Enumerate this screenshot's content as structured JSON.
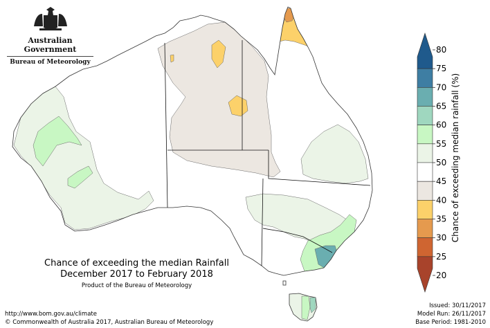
{
  "logo": {
    "emblem_name": "commonwealth-coat-of-arms",
    "line1": "Australian Government",
    "line2": "Bureau of Meteorology"
  },
  "title": {
    "line1": "Chance of exceeding the median Rainfall",
    "line2": "December 2017 to February 2018",
    "line3": "Product of the Bureau of Meteorology"
  },
  "footer_left": {
    "url": "http://www.bom.gov.au/climate",
    "copyright": "© Commonwealth of Australia 2017, Australian Bureau of Meteorology"
  },
  "footer_right": {
    "issued": "Issued: 30/11/2017",
    "model_run": "Model Run: 26/11/2017",
    "base_period": "Base Period: 1981-2010"
  },
  "legend": {
    "title": "Chance of exceeding median rainfall (%)",
    "classes": [
      {
        "from": 75,
        "to": 80,
        "color": "#1f5a8c"
      },
      {
        "from": 70,
        "to": 75,
        "color": "#3e7ea3"
      },
      {
        "from": 65,
        "to": 70,
        "color": "#6aaeb0"
      },
      {
        "from": 60,
        "to": 65,
        "color": "#9fd7bf"
      },
      {
        "from": 55,
        "to": 60,
        "color": "#c8f7c3"
      },
      {
        "from": 50,
        "to": 55,
        "color": "#ebf4e7"
      },
      {
        "from": 45,
        "to": 50,
        "color": "#ffffff"
      },
      {
        "from": 40,
        "to": 45,
        "color": "#ece7e1"
      },
      {
        "from": 35,
        "to": 40,
        "color": "#fcd16a"
      },
      {
        "from": 30,
        "to": 35,
        "color": "#e59a4e"
      },
      {
        "from": 25,
        "to": 30,
        "color": "#cf6531"
      },
      {
        "from": 20,
        "to": 25,
        "color": "#a8432b"
      }
    ],
    "ticks": [
      "80",
      "75",
      "70",
      "65",
      "60",
      "55",
      "50",
      "45",
      "40",
      "35",
      "30",
      "25",
      "20"
    ]
  },
  "colors": {
    "coast": "#333333",
    "state_border": "#111111",
    "contour": "#666666"
  }
}
